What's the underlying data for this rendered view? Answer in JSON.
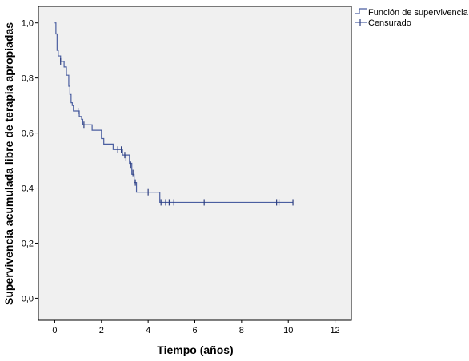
{
  "chart_data": {
    "type": "line",
    "subtype": "kaplan-meier",
    "xlabel": "Tiempo (años)",
    "ylabel": "Supervivencia acumulada libre de terapia apropiadas",
    "xlim": [
      -0.7,
      12.7
    ],
    "ylim": [
      -0.08,
      1.06
    ],
    "xticks": [
      0,
      2,
      4,
      6,
      8,
      10,
      12
    ],
    "yticks": [
      0.0,
      0.2,
      0.4,
      0.6,
      0.8,
      1.0
    ],
    "ytick_labels": [
      "0,0",
      "0,2",
      "0,4",
      "0,6",
      "0,8",
      "1,0"
    ],
    "grid": false,
    "legend_position": "top-right, outside plot",
    "colors": {
      "plot_background": "#f0f0f0",
      "line": "#4a5ea0",
      "censor": "#2e3f80"
    },
    "series": [
      {
        "name": "Función de supervivencia",
        "steps": [
          [
            0.0,
            1.0
          ],
          [
            0.05,
            0.96
          ],
          [
            0.1,
            0.9
          ],
          [
            0.15,
            0.88
          ],
          [
            0.25,
            0.86
          ],
          [
            0.4,
            0.84
          ],
          [
            0.5,
            0.81
          ],
          [
            0.6,
            0.77
          ],
          [
            0.65,
            0.74
          ],
          [
            0.7,
            0.71
          ],
          [
            0.75,
            0.7
          ],
          [
            0.8,
            0.68
          ],
          [
            1.05,
            0.66
          ],
          [
            1.15,
            0.65
          ],
          [
            1.2,
            0.63
          ],
          [
            1.6,
            0.61
          ],
          [
            2.0,
            0.58
          ],
          [
            2.1,
            0.56
          ],
          [
            2.5,
            0.54
          ],
          [
            2.9,
            0.52
          ],
          [
            3.2,
            0.49
          ],
          [
            3.3,
            0.45
          ],
          [
            3.4,
            0.42
          ],
          [
            3.5,
            0.385
          ],
          [
            4.5,
            0.348
          ]
        ],
        "end_x": 10.2
      },
      {
        "name": "Censurado",
        "points": [
          [
            0.25,
            0.86
          ],
          [
            1.0,
            0.68
          ],
          [
            1.25,
            0.63
          ],
          [
            2.7,
            0.54
          ],
          [
            2.85,
            0.54
          ],
          [
            3.0,
            0.52
          ],
          [
            3.05,
            0.51
          ],
          [
            3.25,
            0.485
          ],
          [
            3.35,
            0.455
          ],
          [
            3.45,
            0.42
          ],
          [
            4.0,
            0.385
          ],
          [
            4.55,
            0.348
          ],
          [
            4.75,
            0.348
          ],
          [
            4.9,
            0.348
          ],
          [
            5.1,
            0.348
          ],
          [
            6.4,
            0.348
          ],
          [
            9.5,
            0.348
          ],
          [
            9.6,
            0.348
          ],
          [
            10.2,
            0.348
          ]
        ]
      }
    ]
  }
}
